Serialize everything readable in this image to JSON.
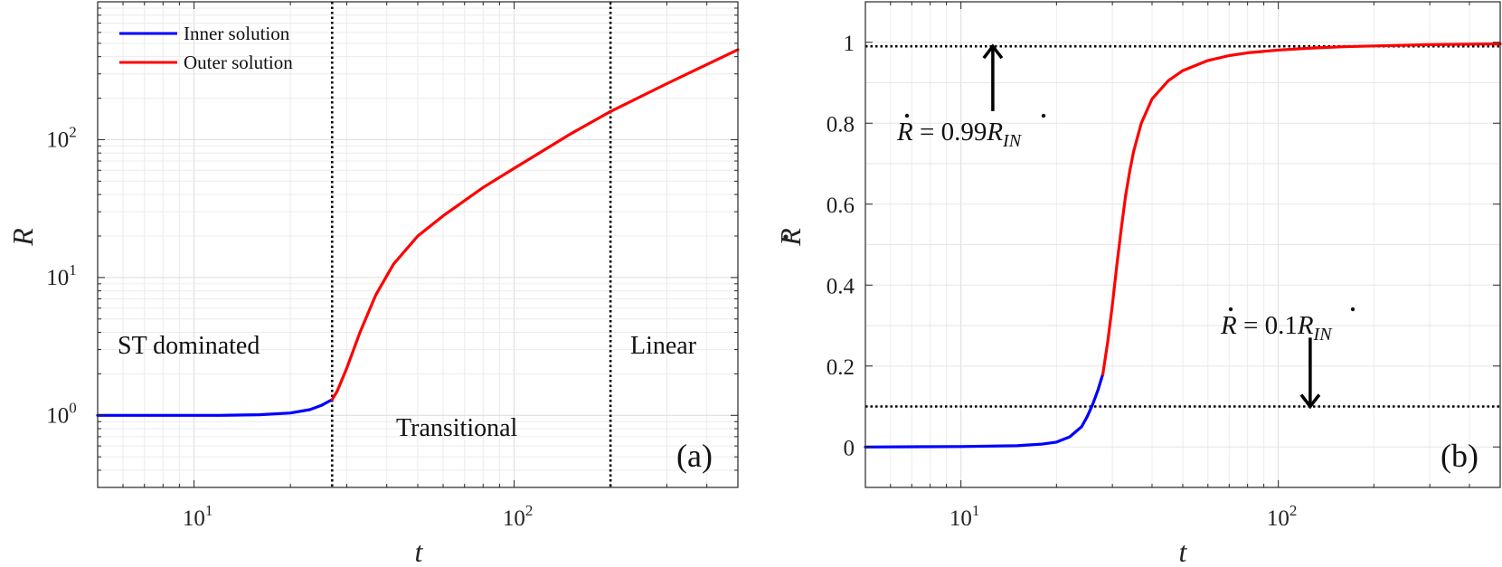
{
  "chart_data": [
    {
      "panel": "(a)",
      "type": "line",
      "xscale": "log",
      "yscale": "log",
      "xlim": [
        5,
        500
      ],
      "ylim": [
        0.3,
        1000
      ],
      "xlabel": "t",
      "ylabel": "R",
      "xticks": [
        {
          "value": 10,
          "label": "10^1"
        },
        {
          "value": 100,
          "label": "10^2"
        }
      ],
      "yticks": [
        {
          "value": 1,
          "label": "10^0"
        },
        {
          "value": 10,
          "label": "10^1"
        },
        {
          "value": 100,
          "label": "10^2"
        }
      ],
      "grid": true,
      "legend": {
        "position": "top-left",
        "entries": [
          {
            "label": "Inner solution",
            "color": "#0000ff"
          },
          {
            "label": "Outer solution",
            "color": "#ff0000"
          }
        ]
      },
      "vlines": [
        {
          "x": 27,
          "style": "dotted"
        },
        {
          "x": 200,
          "style": "dotted"
        }
      ],
      "regions": [
        {
          "label": "ST dominated",
          "x": 10,
          "y": 3
        },
        {
          "label": "Transitional",
          "x": 60,
          "y": 0.9
        },
        {
          "label": "Linear",
          "x": 320,
          "y": 3
        }
      ],
      "series": [
        {
          "name": "Inner solution",
          "color": "#0000ff",
          "x": [
            5,
            8,
            12,
            16,
            20,
            23,
            25,
            27
          ],
          "y": [
            1.0,
            1.0,
            1.0,
            1.01,
            1.04,
            1.1,
            1.18,
            1.3
          ]
        },
        {
          "name": "Outer solution",
          "color": "#ff0000",
          "x": [
            27,
            28,
            30,
            33,
            37,
            42,
            50,
            60,
            80,
            100,
            150,
            200,
            300,
            500
          ],
          "y": [
            1.3,
            1.5,
            2.2,
            4.0,
            7.5,
            12.5,
            20,
            28,
            45,
            62,
            110,
            160,
            255,
            450
          ]
        }
      ]
    },
    {
      "panel": "(b)",
      "type": "line",
      "xscale": "log",
      "yscale": "linear",
      "xlim": [
        5,
        500
      ],
      "ylim": [
        -0.1,
        1.1
      ],
      "xlabel": "t",
      "ylabel": "Ṙ",
      "xticks": [
        {
          "value": 10,
          "label": "10^1"
        },
        {
          "value": 100,
          "label": "10^2"
        }
      ],
      "yticks": [
        0,
        0.2,
        0.4,
        0.6,
        0.8,
        1
      ],
      "grid": true,
      "hlines": [
        {
          "y": 0.99,
          "style": "dotted"
        },
        {
          "y": 0.1,
          "style": "dotted"
        }
      ],
      "annotations": [
        {
          "label": "Ṙ = 0.99Ṙ_IN",
          "arrow": "up",
          "arrow_x": 12.6,
          "arrow_from_y": 0.83,
          "arrow_to_y": 0.99
        },
        {
          "label": "Ṙ = 0.1Ṙ_IN",
          "arrow": "down",
          "arrow_x": 126,
          "arrow_from_y": 0.27,
          "arrow_to_y": 0.1
        }
      ],
      "series": [
        {
          "name": "Inner solution",
          "color": "#0000ff",
          "x": [
            5,
            10,
            15,
            18,
            20,
            22,
            24,
            25,
            26,
            27,
            28
          ],
          "y": [
            0.0,
            0.001,
            0.003,
            0.007,
            0.012,
            0.025,
            0.05,
            0.075,
            0.105,
            0.14,
            0.18
          ]
        },
        {
          "name": "Outer solution",
          "color": "#ff0000",
          "x": [
            28,
            29,
            30,
            31,
            32,
            33,
            34,
            35,
            37,
            40,
            45,
            50,
            60,
            70,
            80,
            100,
            130,
            160,
            200,
            300,
            500
          ],
          "y": [
            0.18,
            0.26,
            0.35,
            0.45,
            0.54,
            0.62,
            0.68,
            0.73,
            0.8,
            0.86,
            0.905,
            0.93,
            0.955,
            0.967,
            0.974,
            0.981,
            0.986,
            0.989,
            0.991,
            0.994,
            0.996
          ]
        }
      ]
    }
  ]
}
